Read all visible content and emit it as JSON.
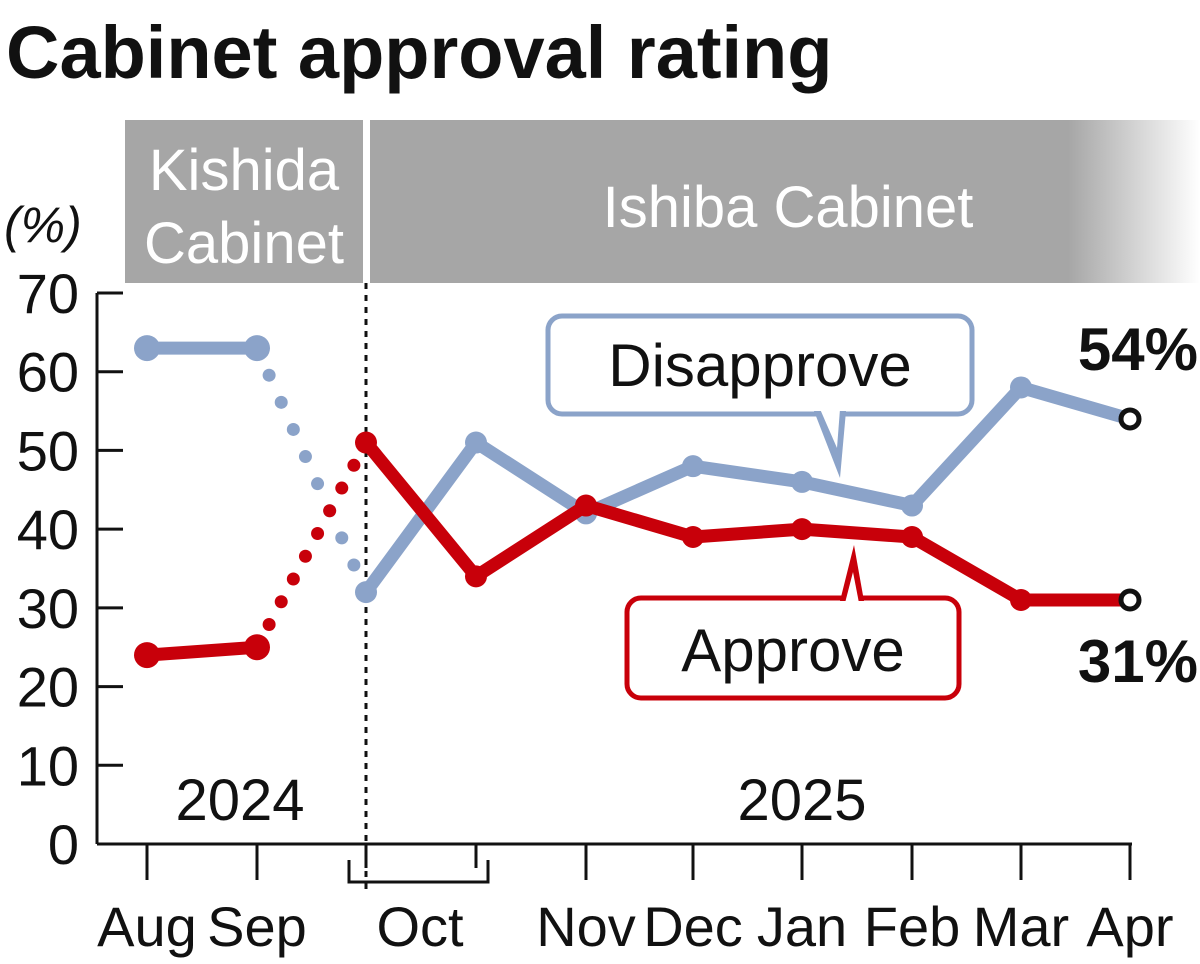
{
  "chart_data": {
    "type": "line",
    "title": "Cabinet approval rating",
    "unit_label": "(%)",
    "ylim": [
      0,
      70
    ],
    "yticks": [
      "0",
      "10",
      "20",
      "30",
      "40",
      "50",
      "60",
      "70"
    ],
    "months": [
      "Aug",
      "Sep",
      "Oct",
      "Nov",
      "Dec",
      "Jan",
      "Feb",
      "Mar",
      "Apr"
    ],
    "years": [
      "2024",
      "2025"
    ],
    "periods": [
      {
        "label_lines": [
          "Kishida",
          "Cabinet"
        ]
      },
      {
        "label_lines": [
          "Ishiba Cabinet"
        ]
      }
    ],
    "x": [
      "Aug 2024",
      "Sep 2024",
      "Oct 2024 (Ishiba start)",
      "Oct 2024 (late)",
      "Nov 2024",
      "Dec 2024",
      "Jan 2025",
      "Feb 2025",
      "Mar 2025",
      "Apr 2025"
    ],
    "series": [
      {
        "name": "Disapprove",
        "color": "#8ba3c9",
        "values": [
          63,
          63,
          32,
          51,
          42,
          48,
          46,
          43,
          58,
          54
        ],
        "end_label": "54%"
      },
      {
        "name": "Approve",
        "color": "#c8000a",
        "values": [
          24,
          25,
          51,
          34,
          43,
          39,
          40,
          39,
          31,
          31
        ],
        "end_label": "31%"
      }
    ],
    "grid": false,
    "legend": "callout boxes"
  }
}
